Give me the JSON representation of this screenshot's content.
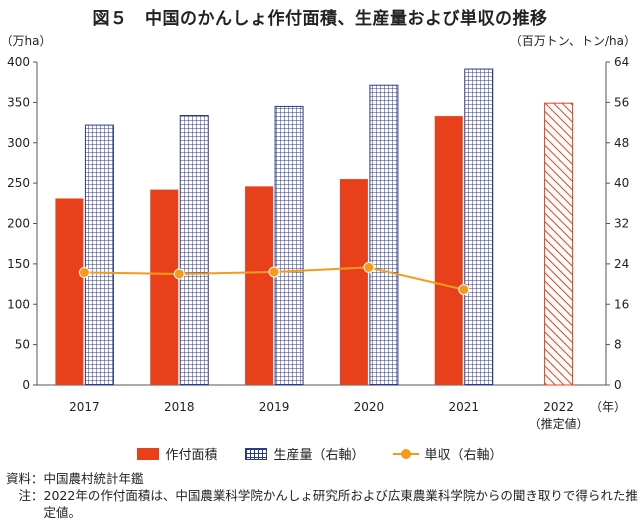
{
  "title": "図５　中国のかんしょ作付面積、生産量および単収の推移",
  "chart_data": {
    "type": "bar",
    "categories": [
      "2017",
      "2018",
      "2019",
      "2020",
      "2021",
      "2022"
    ],
    "category_sublabels": [
      "",
      "",
      "",
      "",
      "",
      "（推定値）"
    ],
    "x_unit_label": "（年）",
    "left_axis": {
      "unit_label": "（万ha）",
      "ylim": [
        0,
        400
      ],
      "ticks": [
        0,
        50,
        100,
        150,
        200,
        250,
        300,
        350,
        400
      ]
    },
    "right_axis": {
      "unit_label": "（百万トン、トン/ha）",
      "ylim": [
        0,
        64
      ],
      "ticks": [
        0,
        8,
        16,
        24,
        32,
        40,
        48,
        56,
        64
      ]
    },
    "series": [
      {
        "name": "作付面積",
        "type": "bar",
        "axis": "left",
        "color": "#e8401a",
        "values": [
          231,
          242,
          246,
          255,
          333,
          349
        ],
        "estimated": [
          false,
          false,
          false,
          false,
          false,
          true
        ]
      },
      {
        "name": "生産量（右軸）",
        "type": "bar",
        "axis": "right",
        "color": "#2b3a8c",
        "values": [
          51.5,
          53.4,
          55.2,
          59.4,
          62.6,
          null
        ]
      },
      {
        "name": "単収（右軸）",
        "type": "line",
        "axis": "right",
        "color": "#f59a1b",
        "values": [
          22.3,
          22.0,
          22.4,
          23.3,
          18.9,
          null
        ]
      }
    ],
    "grid": false,
    "legend_position": "bottom"
  },
  "notes": {
    "source_label": "資料：",
    "source_text": "中国農村統計年鑑",
    "note_label": "　注：",
    "note_text": "2022年の作付面積は、中国農業科学院かんしょ研究所および広東農業科学院からの聞き取りで得られた推定値。"
  }
}
